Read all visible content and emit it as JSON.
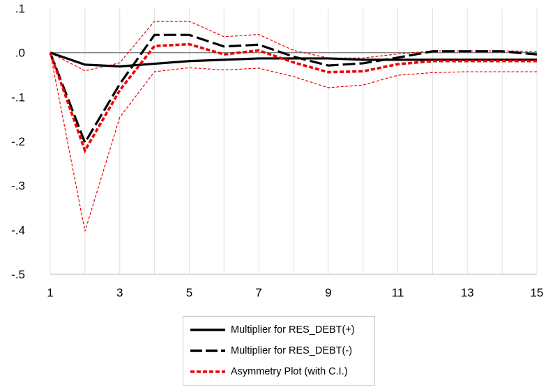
{
  "chart_data": {
    "type": "line",
    "x": [
      1,
      2,
      3,
      4,
      5,
      6,
      7,
      8,
      9,
      10,
      11,
      12,
      13,
      14,
      15
    ],
    "x_ticks": [
      "1",
      "3",
      "5",
      "7",
      "9",
      "11",
      "13",
      "15"
    ],
    "y_ticks": [
      ".1",
      ".0",
      "-.1",
      "-.2",
      "-.3",
      "-.4",
      "-.5"
    ],
    "ylim": [
      -0.5,
      0.1
    ],
    "xlim": [
      1,
      15
    ],
    "grid": "vertical",
    "legend_position": "bottom",
    "series": [
      {
        "name": "Multiplier for RES_DEBT(+)",
        "style": "solid",
        "color": "#000000",
        "values": [
          0.0,
          -0.027,
          -0.031,
          -0.025,
          -0.019,
          -0.016,
          -0.013,
          -0.013,
          -0.013,
          -0.016,
          -0.016,
          -0.016,
          -0.016,
          -0.016,
          -0.016
        ]
      },
      {
        "name": "Multiplier for RES_DEBT(-)",
        "style": "longdash",
        "color": "#000000",
        "values": [
          0.0,
          -0.203,
          -0.071,
          0.04,
          0.04,
          0.014,
          0.018,
          -0.009,
          -0.029,
          -0.024,
          -0.011,
          0.003,
          0.003,
          0.003,
          -0.004
        ]
      },
      {
        "name": "Asymmetry Plot (with C.I.)",
        "style": "dotted",
        "color": "#ee0000",
        "values": [
          0.0,
          -0.221,
          -0.085,
          0.015,
          0.019,
          -0.004,
          0.005,
          -0.022,
          -0.044,
          -0.042,
          -0.026,
          -0.019,
          -0.019,
          -0.019,
          -0.019
        ]
      },
      {
        "name": "",
        "style": "thin-dashed",
        "color": "#ee0000",
        "values": [
          0.0,
          -0.041,
          -0.023,
          0.071,
          0.071,
          0.036,
          0.041,
          0.005,
          -0.012,
          -0.012,
          -0.003,
          0.004,
          0.004,
          0.004,
          0.003
        ]
      },
      {
        "name": "",
        "style": "thin-dashed",
        "color": "#ee0000",
        "values": [
          0.0,
          -0.403,
          -0.146,
          -0.043,
          -0.034,
          -0.039,
          -0.035,
          -0.054,
          -0.079,
          -0.073,
          -0.051,
          -0.045,
          -0.043,
          -0.043,
          -0.043
        ]
      }
    ]
  }
}
